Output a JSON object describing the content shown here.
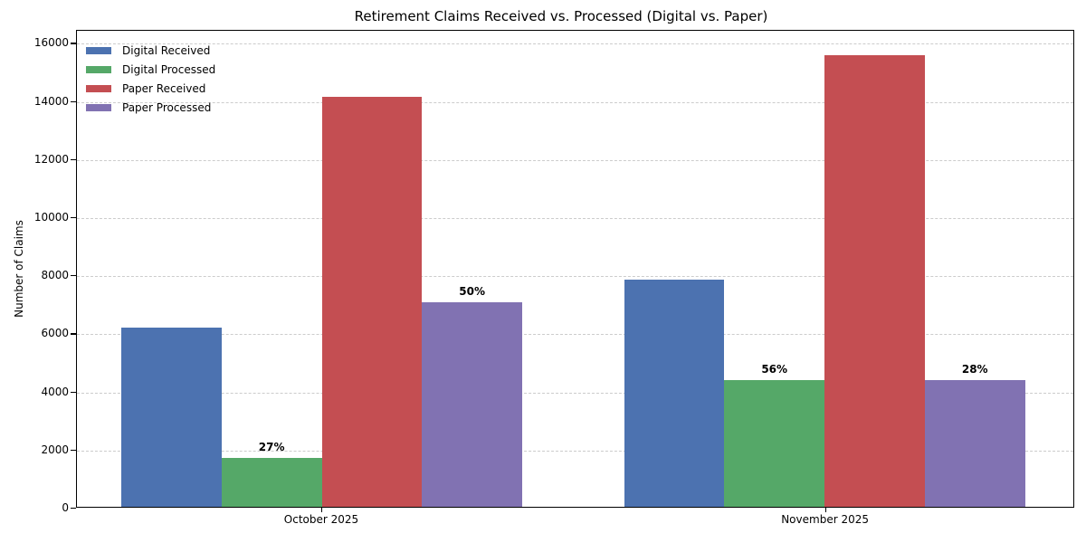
{
  "chart_data": {
    "type": "bar",
    "title": "Retirement Claims Received vs. Processed (Digital vs. Paper)",
    "xlabel": "",
    "ylabel": "Number of Claims",
    "categories": [
      "October 2025",
      "November 2025"
    ],
    "series": [
      {
        "name": "Digital Received",
        "color": "#4C72B0",
        "values": [
          6200,
          7840
        ],
        "labels": [
          "",
          ""
        ]
      },
      {
        "name": "Digital Processed",
        "color": "#55A868",
        "values": [
          1674,
          4390
        ],
        "labels": [
          "27%",
          "56%"
        ]
      },
      {
        "name": "Paper Received",
        "color": "#C44E52",
        "values": [
          14160,
          15600
        ],
        "labels": [
          "",
          ""
        ]
      },
      {
        "name": "Paper Processed",
        "color": "#8172B2",
        "values": [
          7080,
          4368
        ],
        "labels": [
          "50%",
          "28%"
        ]
      }
    ],
    "yticks": [
      0,
      2000,
      4000,
      6000,
      8000,
      10000,
      12000,
      14000,
      16000
    ],
    "ylim": [
      0,
      16450
    ],
    "grid": "horizontal-dashed",
    "gridline_color": "#cccccc",
    "legend_position": "upper-left",
    "axis_color": "#000000"
  }
}
